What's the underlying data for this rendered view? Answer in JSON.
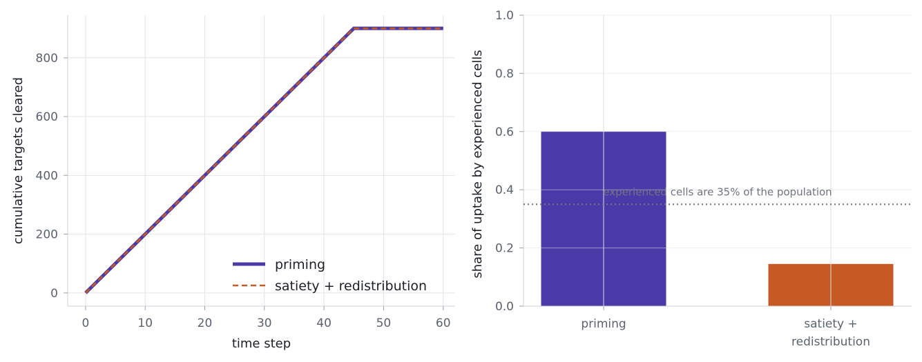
{
  "chart_data": [
    {
      "type": "line",
      "xlabel": "time step",
      "ylabel": "cumulative targets cleared",
      "xlim": [
        -3,
        62
      ],
      "ylim": [
        -45,
        945
      ],
      "xticks": [
        0,
        10,
        20,
        30,
        40,
        50,
        60
      ],
      "yticks": [
        0,
        200,
        400,
        600,
        800
      ],
      "grid": true,
      "legend_position": "lower-right",
      "series": [
        {
          "name": "priming",
          "style": "solid",
          "color": "#4a3aa7",
          "x": [
            0,
            45,
            60
          ],
          "y": [
            0,
            900,
            900
          ]
        },
        {
          "name": "satiety + redistribution",
          "style": "dashed",
          "color": "#c55a24",
          "x": [
            0,
            45,
            60
          ],
          "y": [
            0,
            900,
            900
          ]
        }
      ]
    },
    {
      "type": "bar",
      "ylabel": "share of uptake by experienced cells",
      "categories": [
        "priming",
        "satiety +\nredistribution"
      ],
      "values": [
        0.6,
        0.145
      ],
      "colors": [
        "#4a3aa7",
        "#c55a24"
      ],
      "ylim": [
        0,
        1.0
      ],
      "yticks": [
        0.0,
        0.2,
        0.4,
        0.6,
        0.8,
        1.0
      ],
      "grid": true,
      "reference_line": {
        "y": 0.35,
        "style": "dotted",
        "label": "experienced cells are 35% of the population"
      }
    }
  ]
}
